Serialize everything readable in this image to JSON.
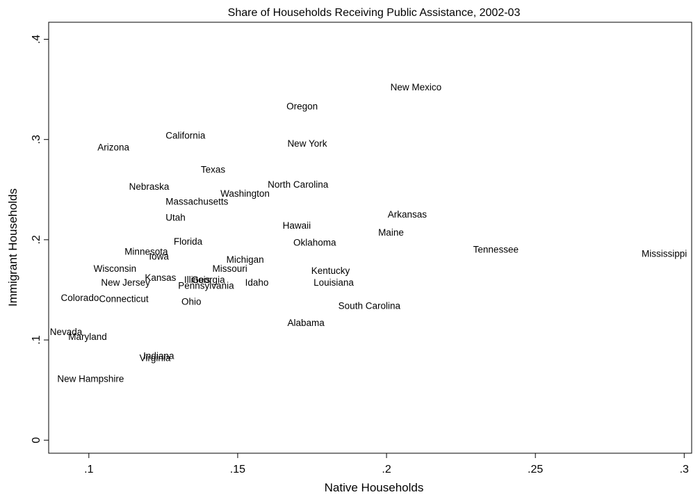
{
  "chart_data": {
    "type": "scatter",
    "title": "Share of Households Receiving Public Assistance, 2002-03",
    "xlabel": "Native Households",
    "ylabel": "Immigrant Households",
    "xlim": [
      0.0865,
      0.3025
    ],
    "ylim": [
      -0.013,
      0.417
    ],
    "x_ticks": [
      0.1,
      0.15,
      0.2,
      0.25,
      0.3
    ],
    "x_tick_labels": [
      ".1",
      ".15",
      ".2",
      ".25",
      ".3"
    ],
    "y_ticks": [
      0,
      0.1,
      0.2,
      0.3,
      0.4
    ],
    "y_tick_labels": [
      "0",
      ".1",
      ".2",
      ".3",
      ".4"
    ],
    "grid": false,
    "marker": "label-only",
    "points": [
      {
        "label": "New Mexico",
        "x": 0.2013,
        "y": 0.349
      },
      {
        "label": "Oregon",
        "x": 0.1664,
        "y": 0.33
      },
      {
        "label": "California",
        "x": 0.1258,
        "y": 0.301
      },
      {
        "label": "Arizona",
        "x": 0.1029,
        "y": 0.289
      },
      {
        "label": "New York",
        "x": 0.1667,
        "y": 0.293
      },
      {
        "label": "Texas",
        "x": 0.1376,
        "y": 0.267
      },
      {
        "label": "North Carolina",
        "x": 0.1601,
        "y": 0.252
      },
      {
        "label": "Nebraska",
        "x": 0.1135,
        "y": 0.25
      },
      {
        "label": "Washington",
        "x": 0.1442,
        "y": 0.243
      },
      {
        "label": "Massachusetts",
        "x": 0.1258,
        "y": 0.235
      },
      {
        "label": "Arkansas",
        "x": 0.2004,
        "y": 0.222
      },
      {
        "label": "Utah",
        "x": 0.1258,
        "y": 0.219
      },
      {
        "label": "Hawaii",
        "x": 0.1651,
        "y": 0.211
      },
      {
        "label": "Maine",
        "x": 0.1972,
        "y": 0.204
      },
      {
        "label": "Florida",
        "x": 0.1285,
        "y": 0.195
      },
      {
        "label": "Oklahoma",
        "x": 0.1687,
        "y": 0.194
      },
      {
        "label": "Tennessee",
        "x": 0.2291,
        "y": 0.187
      },
      {
        "label": "Minnesota",
        "x": 0.112,
        "y": 0.185
      },
      {
        "label": "Mississippi",
        "x": 0.2857,
        "y": 0.183
      },
      {
        "label": "Iowa",
        "x": 0.1202,
        "y": 0.18
      },
      {
        "label": "Michigan",
        "x": 0.1462,
        "y": 0.177
      },
      {
        "label": "Wisconsin",
        "x": 0.1016,
        "y": 0.168
      },
      {
        "label": "Missouri",
        "x": 0.1415,
        "y": 0.168
      },
      {
        "label": "Kentucky",
        "x": 0.1747,
        "y": 0.166
      },
      {
        "label": "Kansas",
        "x": 0.1188,
        "y": 0.159
      },
      {
        "label": "Illinois",
        "x": 0.132,
        "y": 0.157
      },
      {
        "label": "Georgia",
        "x": 0.1345,
        "y": 0.157
      },
      {
        "label": "New Jersey",
        "x": 0.1041,
        "y": 0.154
      },
      {
        "label": "Idaho",
        "x": 0.1525,
        "y": 0.154
      },
      {
        "label": "Louisiana",
        "x": 0.1755,
        "y": 0.154
      },
      {
        "label": "Pennsylvania",
        "x": 0.13,
        "y": 0.151
      },
      {
        "label": "Colorado",
        "x": 0.0906,
        "y": 0.139
      },
      {
        "label": "Connecticut",
        "x": 0.1034,
        "y": 0.138
      },
      {
        "label": "Ohio",
        "x": 0.1311,
        "y": 0.135
      },
      {
        "label": "South Carolina",
        "x": 0.1838,
        "y": 0.131
      },
      {
        "label": "Alabama",
        "x": 0.1667,
        "y": 0.114
      },
      {
        "label": "Nevada",
        "x": 0.0869,
        "y": 0.105
      },
      {
        "label": "Maryland",
        "x": 0.0931,
        "y": 0.1
      },
      {
        "label": "Indiana",
        "x": 0.1183,
        "y": 0.081
      },
      {
        "label": "Virginia",
        "x": 0.117,
        "y": 0.079
      },
      {
        "label": "New Hampshire",
        "x": 0.0894,
        "y": 0.058
      }
    ]
  }
}
